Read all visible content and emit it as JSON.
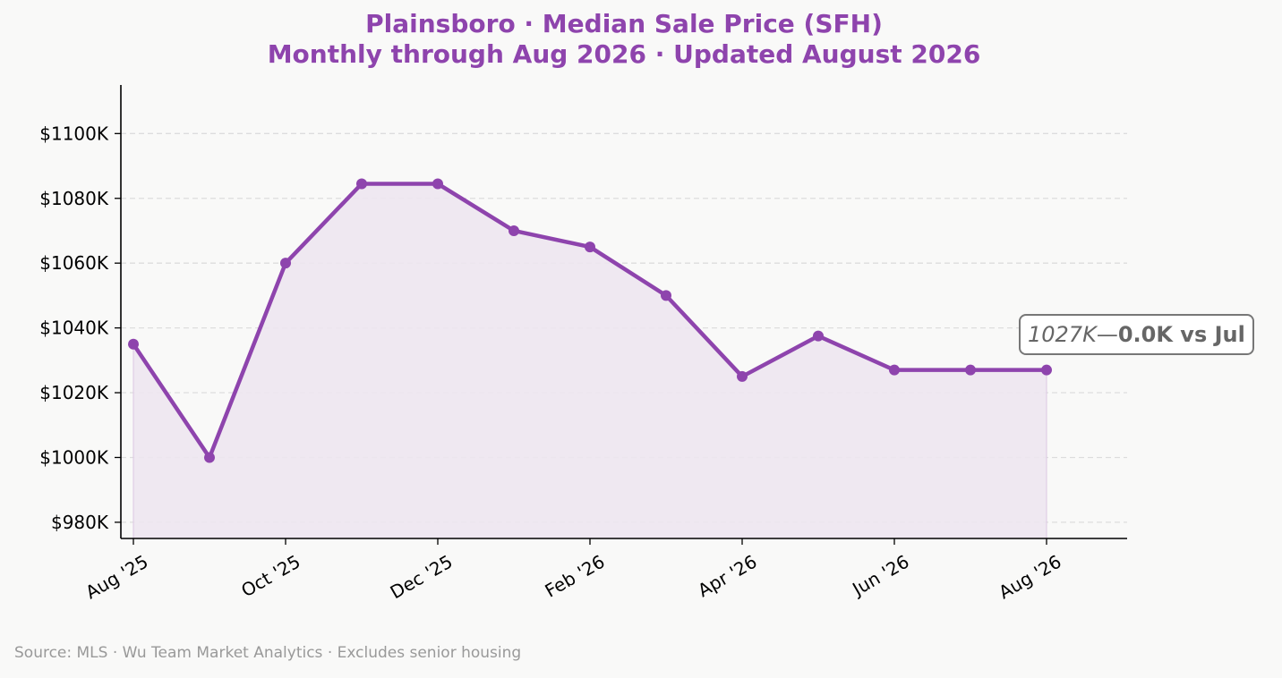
{
  "header": {
    "title_line1": "Plainsboro  ·  Median Sale Price (SFH)",
    "title_line2": "Monthly through Aug 2026  ·  Updated August 2026"
  },
  "footer": {
    "source": "Source: MLS · Wu Team Market Analytics · Excludes senior housing"
  },
  "annotation": {
    "value_text": "1027K",
    "dash": "—",
    "change_text": "0.0K vs Jul"
  },
  "colors": {
    "accent": "#8e44ad",
    "fill": "#ede5ef",
    "grid": "#dddddd",
    "axis": "#000000",
    "source_text": "#999999",
    "annotation_border": "#777777"
  },
  "chart_data": {
    "type": "line",
    "x": [
      "Aug 2025",
      "Sep 2025",
      "Oct 2025",
      "Nov 2025",
      "Dec 2025",
      "Jan 2026",
      "Feb 2026",
      "Mar 2026",
      "Apr 2026",
      "May 2026",
      "Jun 2026",
      "Jul 2026",
      "Aug 2026"
    ],
    "series": [
      {
        "values": [
          1035,
          1000,
          1060,
          1084.5,
          1084.5,
          1070,
          1065,
          1050,
          1025,
          1037.5,
          1027,
          1027,
          1027
        ]
      }
    ],
    "xticks": [
      "Aug '25",
      "Oct '25",
      "Dec '25",
      "Feb '26",
      "Apr '26",
      "Jun '26",
      "Aug '26"
    ],
    "xtick_index": [
      0,
      2,
      4,
      6,
      8,
      10,
      12
    ],
    "yticks": [
      "$980K",
      "$1000K",
      "$1020K",
      "$1040K",
      "$1060K",
      "$1080K",
      "$1100K"
    ],
    "ytick_values": [
      980,
      1000,
      1020,
      1040,
      1060,
      1080,
      1100
    ],
    "ylim": [
      975,
      1115
    ],
    "grid": "horizontal dashed",
    "area_fill": true,
    "markers": true
  }
}
